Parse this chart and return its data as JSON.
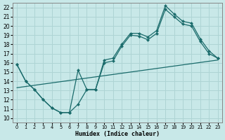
{
  "xlabel": "Humidex (Indice chaleur)",
  "bg_color": "#c8e8e8",
  "grid_color": "#aed4d4",
  "line_color": "#1a6b6b",
  "xlim": [
    -0.5,
    23.5
  ],
  "ylim": [
    9.5,
    22.5
  ],
  "xticks": [
    0,
    1,
    2,
    3,
    4,
    5,
    6,
    7,
    8,
    9,
    10,
    11,
    12,
    13,
    14,
    15,
    16,
    17,
    18,
    19,
    20,
    21,
    22,
    23
  ],
  "yticks": [
    10,
    11,
    12,
    13,
    14,
    15,
    16,
    17,
    18,
    19,
    20,
    21,
    22
  ],
  "line1_x": [
    0,
    1,
    2,
    3,
    4,
    5,
    6,
    7,
    8,
    9,
    10,
    11,
    12,
    13,
    14,
    15,
    16,
    17,
    18,
    19,
    20,
    21,
    22,
    23
  ],
  "line1_y": [
    15.8,
    14.0,
    13.1,
    12.0,
    11.1,
    10.6,
    10.6,
    15.2,
    13.1,
    13.1,
    16.3,
    16.5,
    18.0,
    19.2,
    19.2,
    18.8,
    19.5,
    22.2,
    21.3,
    20.5,
    20.3,
    18.6,
    17.3,
    16.5
  ],
  "line2_x": [
    0,
    1,
    2,
    3,
    4,
    5,
    6,
    7,
    8,
    9,
    10,
    11,
    12,
    13,
    14,
    15,
    16,
    17,
    18,
    19,
    20,
    21,
    22,
    23
  ],
  "line2_y": [
    15.8,
    14.0,
    13.1,
    12.0,
    11.1,
    10.6,
    10.6,
    11.5,
    13.1,
    13.1,
    16.0,
    16.2,
    17.8,
    19.0,
    18.9,
    18.5,
    19.2,
    21.8,
    21.0,
    20.2,
    20.0,
    18.3,
    17.0,
    16.5
  ],
  "line3_x": [
    0,
    23
  ],
  "line3_y": [
    13.3,
    16.3
  ]
}
